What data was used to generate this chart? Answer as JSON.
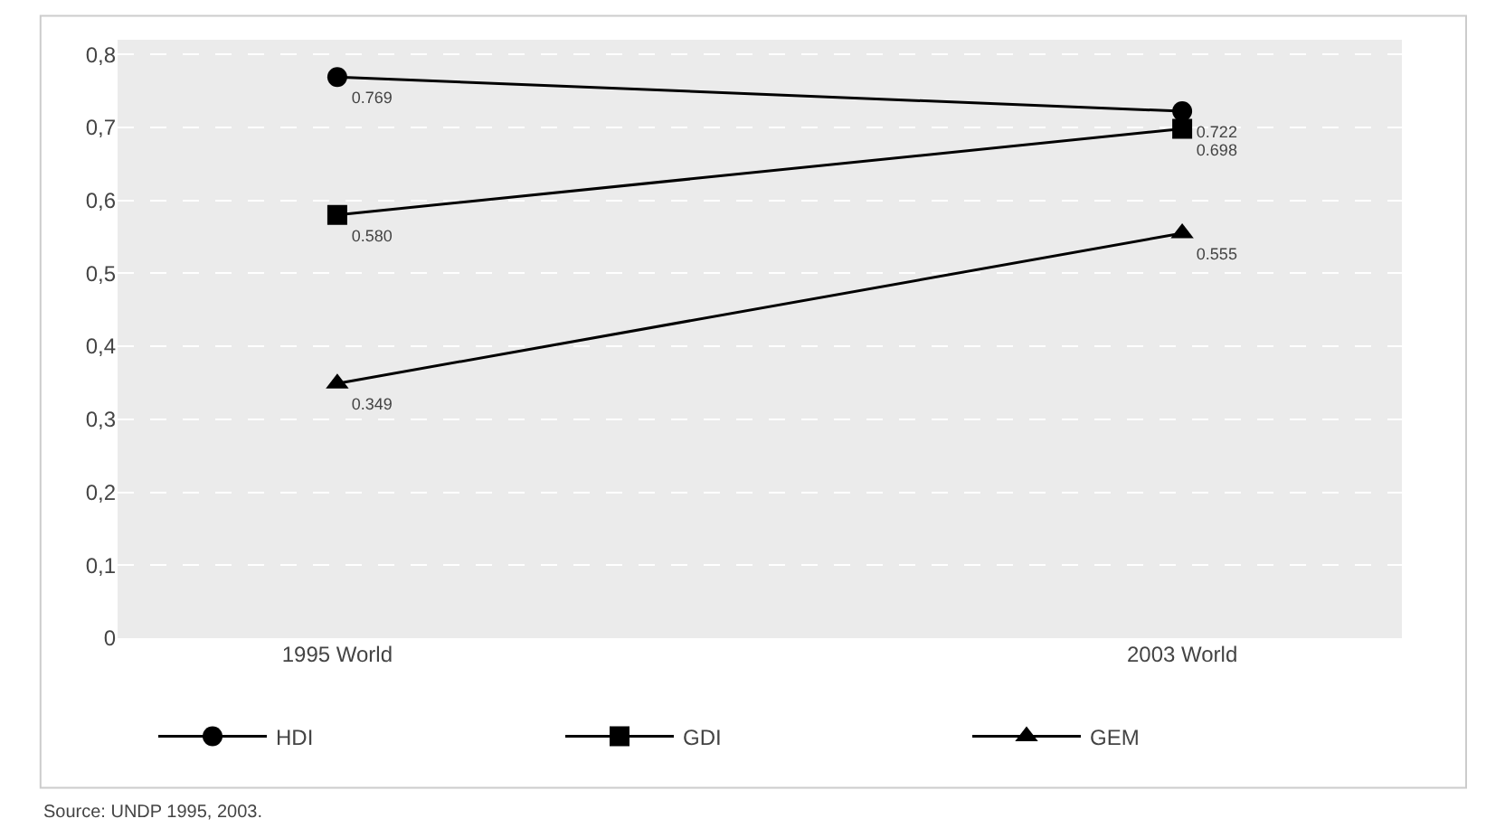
{
  "chart_data": {
    "type": "line",
    "categories": [
      "1995 World",
      "2003 World"
    ],
    "series": [
      {
        "name": "HDI",
        "color": "#000000",
        "marker": "circle",
        "values": [
          0.769,
          0.722
        ],
        "value_labels": [
          "0.769",
          "0.722"
        ]
      },
      {
        "name": "GDI",
        "color": "#000000",
        "marker": "square",
        "values": [
          0.58,
          0.698
        ],
        "value_labels": [
          "0.580",
          "0.698"
        ]
      },
      {
        "name": "GEM",
        "color": "#000000",
        "marker": "triangle",
        "values": [
          0.349,
          0.555
        ],
        "value_labels": [
          "0.349",
          "0.555"
        ]
      }
    ],
    "ylim": [
      0,
      0.82
    ],
    "yticks": [
      0,
      {
        "value": 0.1,
        "label": "0,1"
      },
      {
        "value": 0.2,
        "label": "0,2"
      },
      {
        "value": 0.3,
        "label": "0,3"
      },
      {
        "value": 0.4,
        "label": "0,4"
      },
      {
        "value": 0.5,
        "label": "0,5"
      },
      {
        "value": 0.6,
        "label": "0,6"
      },
      {
        "value": 0.7,
        "label": "0,7"
      },
      {
        "value": 0.8,
        "label": "0,8"
      }
    ],
    "grid": "y",
    "legend": "bottom",
    "line_style": "solid",
    "annotations": [
      "Source: UNDP 1995, 2003."
    ]
  }
}
